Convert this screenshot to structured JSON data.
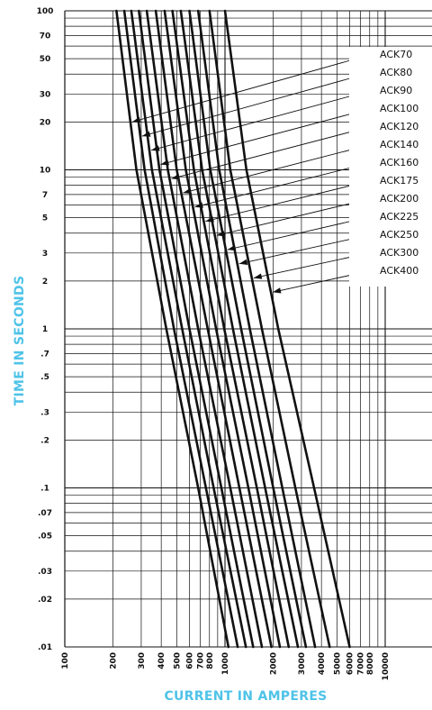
{
  "chart_data": {
    "type": "line",
    "xlabel": "CURRENT IN AMPERES",
    "ylabel": "TIME IN SECONDS",
    "x_scale": "log",
    "y_scale": "log",
    "xlim": [
      100,
      15000
    ],
    "ylim": [
      0.01,
      100
    ],
    "grid": true,
    "legend_placement": "right",
    "x_tick_labels": [
      "100",
      "200",
      "300",
      "400",
      "500",
      "600",
      "700",
      "800",
      "1000",
      "2000",
      "3000",
      "4000",
      "5000",
      "6000",
      "7000",
      "8000",
      "10000"
    ],
    "y_tick_labels": [
      "100",
      "70",
      "50",
      "30",
      "20",
      "10",
      "7",
      "5",
      "3",
      "2",
      "1",
      ".7",
      ".5",
      ".3",
      ".2",
      ".1",
      ".07",
      ".05",
      ".03",
      ".02",
      ".01"
    ],
    "series": [
      {
        "name": "ACK70",
        "points": [
          [
            210,
            100
          ],
          [
            280,
            10
          ],
          [
            430,
            1
          ],
          [
            680,
            0.1
          ],
          [
            1050,
            0.01
          ]
        ]
      },
      {
        "name": "ACK80",
        "points": [
          [
            235,
            100
          ],
          [
            315,
            10
          ],
          [
            480,
            1
          ],
          [
            760,
            0.1
          ],
          [
            1200,
            0.01
          ]
        ]
      },
      {
        "name": "ACK90",
        "points": [
          [
            260,
            100
          ],
          [
            350,
            10
          ],
          [
            540,
            1
          ],
          [
            850,
            0.1
          ],
          [
            1350,
            0.01
          ]
        ]
      },
      {
        "name": "ACK100",
        "points": [
          [
            290,
            100
          ],
          [
            390,
            10
          ],
          [
            600,
            1
          ],
          [
            950,
            0.1
          ],
          [
            1500,
            0.01
          ]
        ]
      },
      {
        "name": "ACK120",
        "points": [
          [
            325,
            100
          ],
          [
            440,
            10
          ],
          [
            680,
            1
          ],
          [
            1080,
            0.1
          ],
          [
            1700,
            0.01
          ]
        ]
      },
      {
        "name": "ACK140",
        "points": [
          [
            370,
            100
          ],
          [
            500,
            10
          ],
          [
            780,
            1
          ],
          [
            1230,
            0.1
          ],
          [
            1950,
            0.01
          ]
        ]
      },
      {
        "name": "ACK160",
        "points": [
          [
            420,
            100
          ],
          [
            570,
            10
          ],
          [
            880,
            1
          ],
          [
            1400,
            0.1
          ],
          [
            2200,
            0.01
          ]
        ]
      },
      {
        "name": "ACK175",
        "points": [
          [
            470,
            100
          ],
          [
            640,
            10
          ],
          [
            990,
            1
          ],
          [
            1580,
            0.1
          ],
          [
            2500,
            0.01
          ]
        ]
      },
      {
        "name": "ACK200",
        "points": [
          [
            530,
            100
          ],
          [
            720,
            10
          ],
          [
            1120,
            1
          ],
          [
            1780,
            0.1
          ],
          [
            2850,
            0.01
          ]
        ]
      },
      {
        "name": "ACK225",
        "points": [
          [
            600,
            100
          ],
          [
            810,
            10
          ],
          [
            1260,
            1
          ],
          [
            2000,
            0.1
          ],
          [
            3200,
            0.01
          ]
        ]
      },
      {
        "name": "ACK250",
        "points": [
          [
            680,
            100
          ],
          [
            920,
            10
          ],
          [
            1430,
            1
          ],
          [
            2280,
            0.1
          ],
          [
            3650,
            0.01
          ]
        ]
      },
      {
        "name": "ACK300",
        "points": [
          [
            800,
            100
          ],
          [
            1080,
            10
          ],
          [
            1700,
            1
          ],
          [
            2750,
            0.1
          ],
          [
            4500,
            0.01
          ]
        ]
      },
      {
        "name": "ACK400",
        "points": [
          [
            1000,
            100
          ],
          [
            1360,
            10
          ],
          [
            2150,
            1
          ],
          [
            3600,
            0.1
          ],
          [
            6000,
            0.01
          ]
        ]
      }
    ]
  }
}
